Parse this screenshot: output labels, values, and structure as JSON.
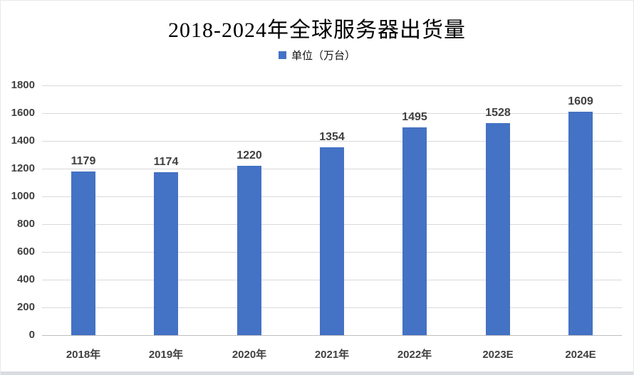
{
  "chart_data": {
    "type": "bar",
    "title": "2018-2024年全球服务器出货量",
    "legend_label": "单位（万台）",
    "legend_position": "top",
    "categories": [
      "2018年",
      "2019年",
      "2020年",
      "2021年",
      "2022年",
      "2023E",
      "2024E"
    ],
    "values": [
      1179,
      1174,
      1220,
      1354,
      1495,
      1528,
      1609
    ],
    "xlabel": "",
    "ylabel": "",
    "ylim": [
      0,
      1800
    ],
    "yticks": [
      0,
      200,
      400,
      600,
      800,
      1000,
      1200,
      1400,
      1600,
      1800
    ],
    "grid": true,
    "bar_color": "#4472C4",
    "gridline_color": "#D9D9D9",
    "axis_label_color": "#404040",
    "title_color": "#000000"
  }
}
